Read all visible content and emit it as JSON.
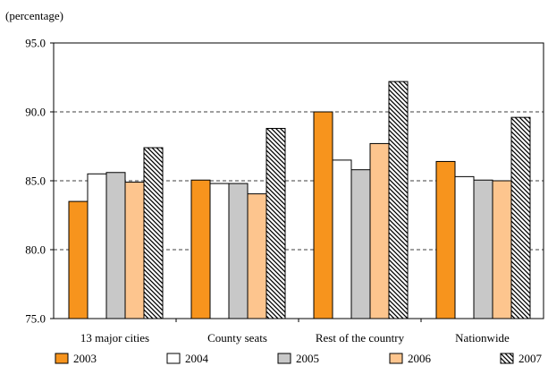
{
  "chart_data": {
    "type": "bar",
    "unit_label": "(percentage)",
    "categories": [
      "13 major cities",
      "County seats",
      "Rest of the country",
      "Nationwide"
    ],
    "series": [
      {
        "name": "2003",
        "values": [
          83.5,
          85.05,
          90.0,
          86.4
        ],
        "color": "#F7941D",
        "pattern": "solid"
      },
      {
        "name": "2004",
        "values": [
          85.5,
          84.8,
          86.5,
          85.3
        ],
        "color": "#FFFFFF",
        "pattern": "solid"
      },
      {
        "name": "2005",
        "values": [
          85.6,
          84.8,
          85.8,
          85.05
        ],
        "color": "#C8C8C8",
        "pattern": "solid"
      },
      {
        "name": "2006",
        "values": [
          84.9,
          84.05,
          87.7,
          85.0
        ],
        "color": "#FDC58E",
        "pattern": "solid"
      },
      {
        "name": "2007",
        "values": [
          87.4,
          88.8,
          92.2,
          89.6
        ],
        "color": "#FFFFFF",
        "pattern": "diagonal-hatch"
      }
    ],
    "ylim": [
      75.0,
      95.0
    ],
    "yticks": [
      "75.0",
      "80.0",
      "85.0",
      "90.0",
      "95.0"
    ],
    "grid": "horizontal dashed",
    "legend_position": "bottom"
  }
}
